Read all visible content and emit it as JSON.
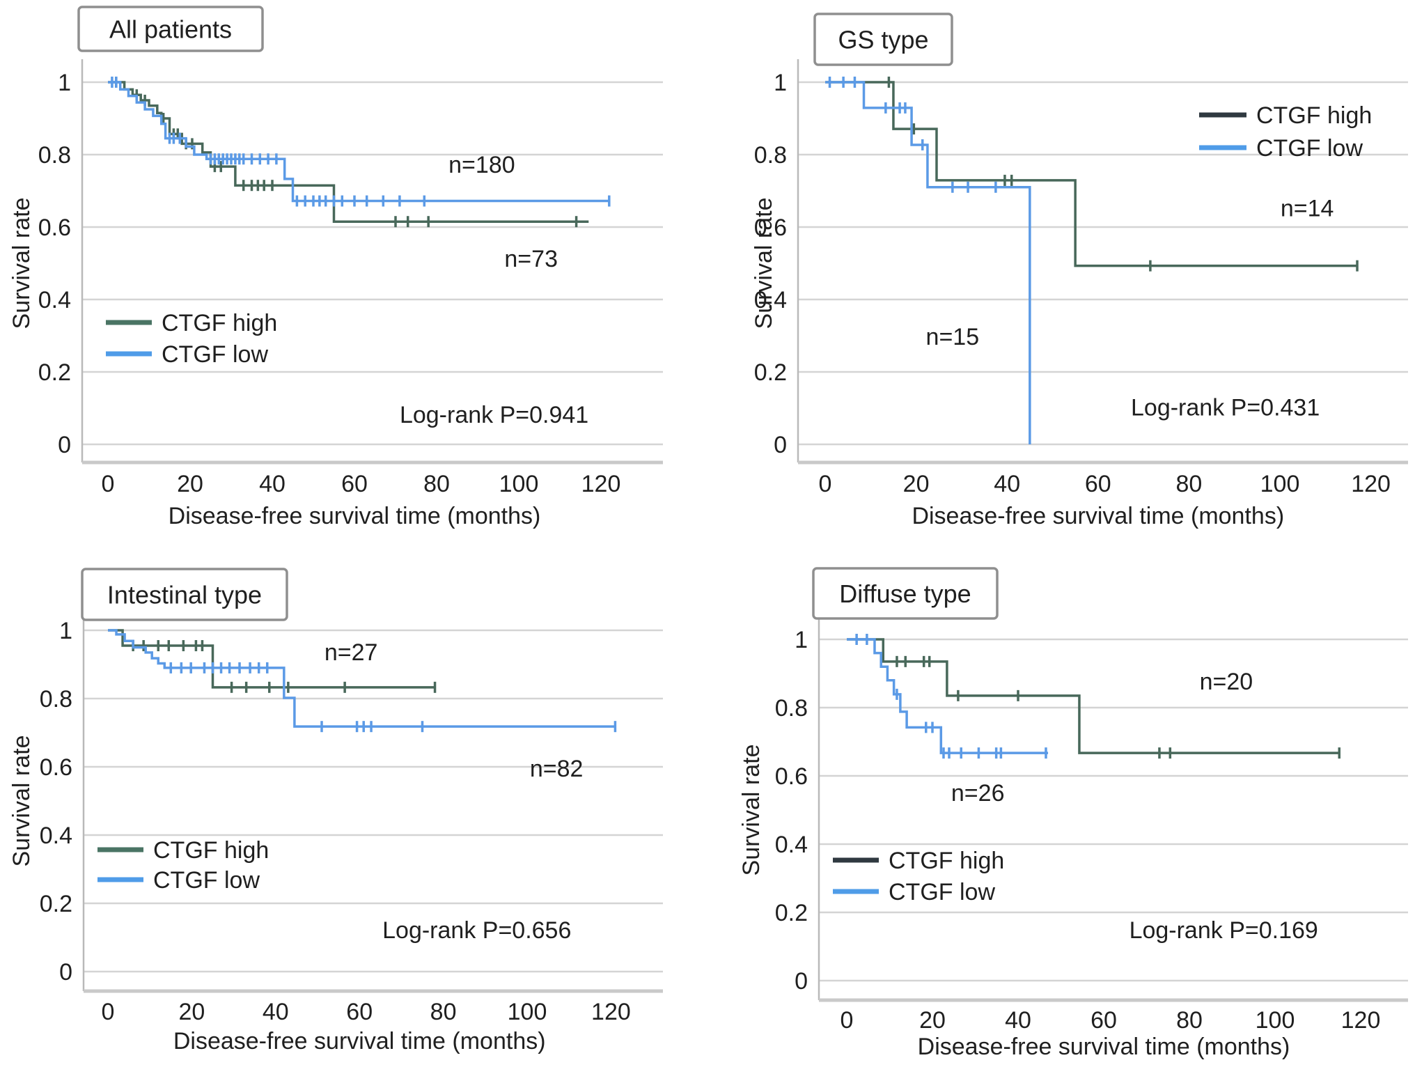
{
  "colors": {
    "ctgf_high": "#48685a",
    "ctgf_low": "#5b9ae6",
    "legend_high_default": "#4a7464",
    "legend_high_dark": "#2f3940",
    "legend_low": "#4f9ce8",
    "grid": "#d4d4d4",
    "axis_line": "#b9b9b9",
    "bottom_axis": "#c9c9c9",
    "title_box_border": "#8f8f8f",
    "text": "#1f1f1f"
  },
  "axis": {
    "x_label": "Disease-free survival time (months)",
    "y_label": "Survival rate",
    "x_ticks": [
      0,
      20,
      40,
      60,
      80,
      100,
      120
    ],
    "y_ticks": [
      1.0,
      0.8,
      0.6,
      0.4,
      0.2,
      0.0
    ]
  },
  "legend": {
    "high": "CTGF high",
    "low": "CTGF low"
  },
  "chart_data": {
    "type": "line",
    "subtype": "kaplan-meier-step",
    "x_range": [
      0,
      130
    ],
    "y_range": [
      0.0,
      1.0
    ],
    "grid": "horizontal-only",
    "panels": [
      {
        "title": "All patients",
        "log_rank": "Log-rank P=0.941",
        "legend_position": "lower-left",
        "legend_high_dark": false,
        "series": [
          {
            "name": "CTGF high",
            "n": 73,
            "color_key": "ctgf_high",
            "steps": [
              [
                0,
                1.0
              ],
              [
                4,
                0.98
              ],
              [
                6,
                0.965
              ],
              [
                8,
                0.95
              ],
              [
                10,
                0.935
              ],
              [
                12,
                0.915
              ],
              [
                13,
                0.9
              ],
              [
                15,
                0.857
              ],
              [
                18,
                0.83
              ],
              [
                23,
                0.806
              ],
              [
                25,
                0.767
              ],
              [
                31,
                0.715
              ],
              [
                55,
                0.615
              ]
            ],
            "end": 117,
            "censors": [
              [
                2,
                1.0
              ],
              [
                7,
                0.965
              ],
              [
                9,
                0.95
              ],
              [
                13.5,
                0.9
              ],
              [
                16,
                0.857
              ],
              [
                17,
                0.857
              ],
              [
                19,
                0.83
              ],
              [
                20.5,
                0.83
              ],
              [
                26,
                0.767
              ],
              [
                27.5,
                0.767
              ],
              [
                33,
                0.715
              ],
              [
                35,
                0.715
              ],
              [
                36.5,
                0.715
              ],
              [
                38,
                0.715
              ],
              [
                40,
                0.715
              ],
              [
                70,
                0.615
              ],
              [
                73,
                0.615
              ],
              [
                78,
                0.615
              ],
              [
                114,
                0.615
              ]
            ]
          },
          {
            "name": "CTGF low",
            "n": 180,
            "color_key": "ctgf_low",
            "steps": [
              [
                0,
                1.0
              ],
              [
                3,
                0.98
              ],
              [
                5,
                0.962
              ],
              [
                7,
                0.944
              ],
              [
                9,
                0.925
              ],
              [
                11,
                0.907
              ],
              [
                13,
                0.885
              ],
              [
                14,
                0.845
              ],
              [
                19,
                0.822
              ],
              [
                21,
                0.8
              ],
              [
                24,
                0.788
              ],
              [
                43,
                0.733
              ],
              [
                45,
                0.672
              ]
            ],
            "end": 122,
            "censors": [
              [
                1,
                1.0
              ],
              [
                2,
                1.0
              ],
              [
                15,
                0.845
              ],
              [
                16,
                0.845
              ],
              [
                17.5,
                0.845
              ],
              [
                25,
                0.788
              ],
              [
                26,
                0.788
              ],
              [
                27,
                0.788
              ],
              [
                28,
                0.788
              ],
              [
                29,
                0.788
              ],
              [
                30,
                0.788
              ],
              [
                31,
                0.788
              ],
              [
                32,
                0.788
              ],
              [
                33,
                0.788
              ],
              [
                35,
                0.788
              ],
              [
                37,
                0.788
              ],
              [
                39,
                0.788
              ],
              [
                41,
                0.788
              ],
              [
                46,
                0.672
              ],
              [
                48,
                0.672
              ],
              [
                50,
                0.672
              ],
              [
                51.5,
                0.672
              ],
              [
                53,
                0.672
              ],
              [
                55,
                0.672
              ],
              [
                57,
                0.672
              ],
              [
                60,
                0.672
              ],
              [
                63,
                0.672
              ],
              [
                67,
                0.672
              ],
              [
                71,
                0.672
              ],
              [
                77,
                0.672
              ],
              [
                122,
                0.672
              ]
            ]
          }
        ],
        "annotations": [
          {
            "text": "n=180",
            "m": 91,
            "v": 0.75
          },
          {
            "text": "n=73",
            "m": 103,
            "v": 0.49
          },
          {
            "text": "Log-rank P=0.941",
            "m": 94,
            "v": 0.06
          }
        ]
      },
      {
        "title": "GS type",
        "log_rank": "Log-rank P=0.431",
        "legend_position": "upper-right",
        "legend_high_dark": true,
        "series": [
          {
            "name": "CTGF high",
            "n": 14,
            "color_key": "ctgf_high",
            "steps": [
              [
                0,
                1.0
              ],
              [
                15,
                0.871
              ],
              [
                24.5,
                0.729
              ],
              [
                55,
                0.493
              ]
            ],
            "end": 117,
            "censors": [
              [
                14,
                1.0
              ],
              [
                19.5,
                0.871
              ],
              [
                39.5,
                0.729
              ],
              [
                41,
                0.729
              ],
              [
                71.5,
                0.493
              ],
              [
                117,
                0.493
              ]
            ]
          },
          {
            "name": "CTGF low",
            "n": 15,
            "color_key": "ctgf_low",
            "steps": [
              [
                0,
                1.0
              ],
              [
                8.5,
                0.929
              ],
              [
                19,
                0.827
              ],
              [
                22.5,
                0.71
              ],
              [
                45,
                0.0
              ]
            ],
            "end": 45,
            "censors": [
              [
                1,
                1.0
              ],
              [
                4,
                1.0
              ],
              [
                6.5,
                1.0
              ],
              [
                13.3,
                0.929
              ],
              [
                16.4,
                0.929
              ],
              [
                17.6,
                0.929
              ],
              [
                21.4,
                0.827
              ],
              [
                28,
                0.71
              ],
              [
                31.4,
                0.71
              ],
              [
                37.5,
                0.71
              ]
            ]
          }
        ],
        "annotations": [
          {
            "text": "n=14",
            "m": 106,
            "v": 0.63
          },
          {
            "text": "n=15",
            "m": 28,
            "v": 0.275
          },
          {
            "text": "Log-rank P=0.431",
            "m": 88,
            "v": 0.08
          }
        ]
      },
      {
        "title": "Intestinal type",
        "log_rank": "Log-rank P=0.656",
        "legend_position": "lower-left",
        "legend_high_dark": false,
        "series": [
          {
            "name": "CTGF high",
            "n": 27,
            "color_key": "ctgf_high",
            "steps": [
              [
                0,
                1.0
              ],
              [
                3.5,
                0.955
              ],
              [
                25,
                0.833
              ]
            ],
            "end": 78,
            "censors": [
              [
                6,
                0.955
              ],
              [
                8.5,
                0.955
              ],
              [
                12,
                0.955
              ],
              [
                14.5,
                0.955
              ],
              [
                18,
                0.955
              ],
              [
                21,
                0.955
              ],
              [
                22.5,
                0.955
              ],
              [
                29.5,
                0.833
              ],
              [
                33,
                0.833
              ],
              [
                38.5,
                0.833
              ],
              [
                43,
                0.833
              ],
              [
                56.5,
                0.833
              ],
              [
                78,
                0.833
              ]
            ]
          },
          {
            "name": "CTGF low",
            "n": 82,
            "color_key": "ctgf_low",
            "steps": [
              [
                0,
                1.0
              ],
              [
                2,
                0.988
              ],
              [
                4,
                0.969
              ],
              [
                6,
                0.95
              ],
              [
                9,
                0.935
              ],
              [
                10.5,
                0.918
              ],
              [
                12,
                0.903
              ],
              [
                13.5,
                0.89
              ],
              [
                42,
                0.802
              ],
              [
                44.5,
                0.718
              ]
            ],
            "end": 121,
            "censors": [
              [
                15,
                0.89
              ],
              [
                17.5,
                0.89
              ],
              [
                19.8,
                0.89
              ],
              [
                23,
                0.89
              ],
              [
                25,
                0.89
              ],
              [
                27,
                0.89
              ],
              [
                29,
                0.89
              ],
              [
                31.4,
                0.89
              ],
              [
                33.9,
                0.89
              ],
              [
                36,
                0.89
              ],
              [
                38,
                0.89
              ],
              [
                51,
                0.718
              ],
              [
                59.4,
                0.718
              ],
              [
                61,
                0.718
              ],
              [
                62.8,
                0.718
              ],
              [
                75,
                0.718
              ],
              [
                121,
                0.718
              ]
            ]
          }
        ],
        "annotations": [
          {
            "text": "n=27",
            "m": 58,
            "v": 0.912
          },
          {
            "text": "n=82",
            "m": 107,
            "v": 0.571
          },
          {
            "text": "Log-rank P=0.656",
            "m": 88,
            "v": 0.098
          }
        ]
      },
      {
        "title": "Diffuse type",
        "log_rank": "Log-rank P=0.169",
        "legend_position": "lower-left",
        "legend_high_dark": true,
        "series": [
          {
            "name": "CTGF high",
            "n": 20,
            "color_key": "ctgf_high",
            "steps": [
              [
                0,
                1.0
              ],
              [
                8.5,
                0.935
              ],
              [
                23.4,
                0.835
              ],
              [
                54.3,
                0.667
              ]
            ],
            "end": 115,
            "censors": [
              [
                11.7,
                0.935
              ],
              [
                13.7,
                0.935
              ],
              [
                18,
                0.935
              ],
              [
                19.3,
                0.935
              ],
              [
                26,
                0.835
              ],
              [
                40,
                0.835
              ],
              [
                73,
                0.667
              ],
              [
                75.5,
                0.667
              ],
              [
                115,
                0.667
              ]
            ]
          },
          {
            "name": "CTGF low",
            "n": 26,
            "color_key": "ctgf_low",
            "steps": [
              [
                0,
                1.0
              ],
              [
                6.5,
                0.96
              ],
              [
                8,
                0.92
              ],
              [
                9.5,
                0.88
              ],
              [
                11,
                0.839
              ],
              [
                12.5,
                0.788
              ],
              [
                14,
                0.742
              ],
              [
                22,
                0.667
              ]
            ],
            "end": 47,
            "censors": [
              [
                2.3,
                1.0
              ],
              [
                4.7,
                1.0
              ],
              [
                11.7,
                0.839
              ],
              [
                18.5,
                0.742
              ],
              [
                20,
                0.742
              ],
              [
                22.6,
                0.667
              ],
              [
                23.9,
                0.667
              ],
              [
                26.7,
                0.667
              ],
              [
                30.8,
                0.667
              ],
              [
                34.9,
                0.667
              ],
              [
                36,
                0.667
              ],
              [
                46.5,
                0.667
              ]
            ]
          }
        ],
        "annotations": [
          {
            "text": "n=20",
            "m": 88.6,
            "v": 0.853
          },
          {
            "text": "n=26",
            "m": 30.6,
            "v": 0.527
          },
          {
            "text": "Log-rank P=0.169",
            "m": 88,
            "v": 0.124
          }
        ]
      }
    ]
  }
}
